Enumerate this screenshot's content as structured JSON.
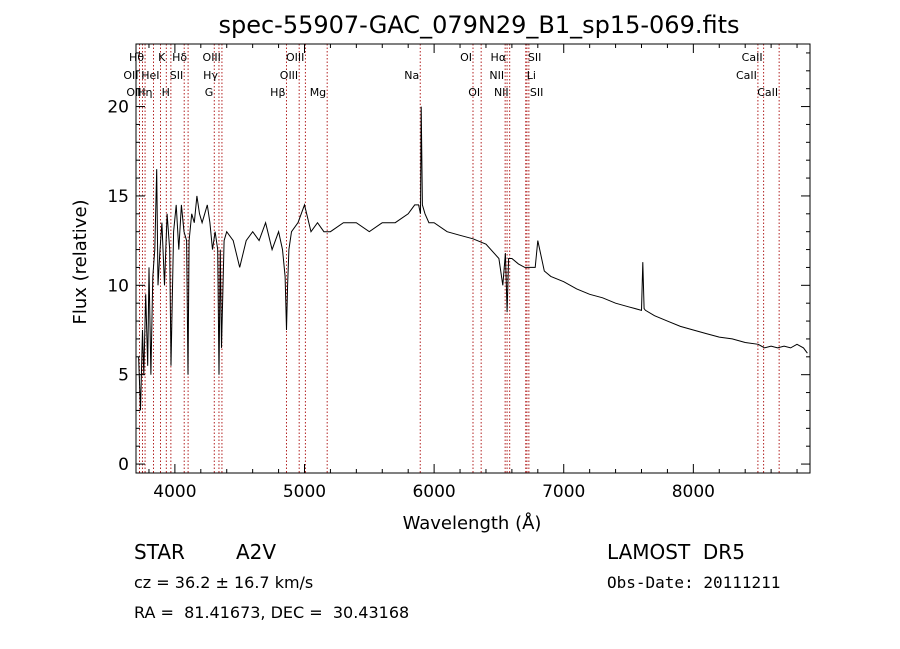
{
  "chart_data": {
    "type": "line",
    "title": "spec-55907-GAC_079N29_B1_sp15-069.fits",
    "xlabel": "Wavelength (Å)",
    "ylabel": "Flux (relative)",
    "xlim": [
      3700,
      8900
    ],
    "ylim": [
      -0.5,
      23.5
    ],
    "xticks": [
      4000,
      5000,
      6000,
      7000,
      8000
    ],
    "yticks": [
      0,
      5,
      10,
      15,
      20
    ],
    "grid": false,
    "line_color": "#000000",
    "marker_color": "#b22222",
    "series": [
      {
        "x": [
          3720,
          3735,
          3750,
          3760,
          3775,
          3790,
          3800,
          3815,
          3830,
          3845,
          3860,
          3870,
          3885,
          3900,
          3920,
          3940,
          3960,
          3970,
          3990,
          4010,
          4030,
          4050,
          4070,
          4090,
          4101,
          4110,
          4130,
          4150,
          4170,
          4190,
          4210,
          4230,
          4250,
          4270,
          4290,
          4310,
          4330,
          4340,
          4350,
          4360,
          4380,
          4400,
          4450,
          4500,
          4550,
          4600,
          4650,
          4700,
          4750,
          4800,
          4830,
          4850,
          4861,
          4870,
          4880,
          4900,
          4950,
          5000,
          5050,
          5100,
          5150,
          5200,
          5300,
          5400,
          5500,
          5600,
          5700,
          5800,
          5850,
          5880,
          5895,
          5900,
          5910,
          5930,
          5960,
          6000,
          6100,
          6200,
          6300,
          6400,
          6500,
          6530,
          6550,
          6563,
          6575,
          6600,
          6650,
          6700,
          6750,
          6780,
          6800,
          6850,
          6900,
          7000,
          7100,
          7200,
          7300,
          7400,
          7500,
          7600,
          7610,
          7620,
          7630,
          7700,
          7800,
          7900,
          8000,
          8100,
          8200,
          8300,
          8400,
          8500,
          8550,
          8600,
          8650,
          8700,
          8750,
          8800,
          8850,
          8880
        ],
        "y": [
          6.0,
          3.0,
          7.5,
          5.0,
          9.5,
          5.5,
          11.0,
          5.0,
          10.5,
          12.0,
          16.5,
          10.0,
          12.0,
          13.5,
          10.0,
          14.0,
          12.0,
          5.5,
          13.0,
          14.5,
          12.0,
          14.5,
          13.0,
          12.5,
          5.0,
          12.5,
          14.0,
          13.5,
          15.0,
          14.0,
          13.5,
          14.0,
          14.5,
          13.5,
          12.0,
          13.0,
          12.0,
          5.0,
          12.0,
          6.5,
          12.5,
          13.0,
          12.5,
          11.0,
          12.5,
          13.0,
          12.5,
          13.5,
          12.0,
          13.0,
          12.0,
          10.5,
          7.5,
          10.0,
          12.0,
          13.0,
          13.5,
          14.5,
          13.0,
          13.5,
          13.0,
          13.0,
          13.5,
          13.5,
          13.0,
          13.5,
          13.5,
          14.0,
          14.5,
          14.5,
          14.0,
          20.0,
          14.5,
          14.0,
          13.5,
          13.5,
          13.0,
          12.8,
          12.6,
          12.3,
          11.5,
          10.0,
          11.8,
          8.5,
          11.5,
          11.5,
          11.2,
          11.0,
          11.0,
          11.0,
          12.5,
          10.8,
          10.5,
          10.2,
          9.8,
          9.5,
          9.3,
          9.0,
          8.8,
          8.6,
          11.3,
          8.7,
          8.6,
          8.3,
          8.0,
          7.7,
          7.5,
          7.3,
          7.1,
          7.0,
          6.8,
          6.7,
          6.5,
          6.6,
          6.5,
          6.6,
          6.5,
          6.7,
          6.5,
          6.2
        ]
      }
    ],
    "line_markers": [
      {
        "x": 3727,
        "label": "OII",
        "row": 1,
        "side": "left"
      },
      {
        "x": 3750,
        "label": "OII",
        "row": 2,
        "side": "left"
      },
      {
        "x": 3770,
        "label": "Hθ",
        "row": 0,
        "side": "left"
      },
      {
        "x": 3835,
        "label": "Hη",
        "row": 2,
        "side": "left"
      },
      {
        "x": 3889,
        "label": "HeI",
        "row": 1,
        "side": "left"
      },
      {
        "x": 3934,
        "label": "K",
        "row": 0,
        "side": "left"
      },
      {
        "x": 3969,
        "label": "H",
        "row": 2,
        "side": "left"
      },
      {
        "x": 4072,
        "label": "SII",
        "row": 1,
        "side": "left"
      },
      {
        "x": 4102,
        "label": "Hδ",
        "row": 0,
        "side": "left"
      },
      {
        "x": 4304,
        "label": "G",
        "row": 2,
        "side": "left"
      },
      {
        "x": 4340,
        "label": "Hγ",
        "row": 1,
        "side": "left"
      },
      {
        "x": 4363,
        "label": "OIII",
        "row": 0,
        "side": "left"
      },
      {
        "x": 4861,
        "label": "Hβ",
        "row": 2,
        "side": "left"
      },
      {
        "x": 4959,
        "label": "OIII",
        "row": 1,
        "side": "left"
      },
      {
        "x": 5007,
        "label": "OIII",
        "row": 0,
        "side": "left"
      },
      {
        "x": 5175,
        "label": "Mg",
        "row": 2,
        "side": "left"
      },
      {
        "x": 5893,
        "label": "Na",
        "row": 1,
        "side": "left"
      },
      {
        "x": 6300,
        "label": "OI",
        "row": 0,
        "side": "left"
      },
      {
        "x": 6363,
        "label": "OI",
        "row": 2,
        "side": "left"
      },
      {
        "x": 6548,
        "label": "NII",
        "row": 1,
        "side": "left"
      },
      {
        "x": 6563,
        "label": "Hα",
        "row": 0,
        "side": "left"
      },
      {
        "x": 6583,
        "label": "NII",
        "row": 2,
        "side": "left"
      },
      {
        "x": 6707,
        "label": "Li",
        "row": 1,
        "side": "right"
      },
      {
        "x": 6716,
        "label": "SII",
        "row": 0,
        "side": "right"
      },
      {
        "x": 6731,
        "label": "SII",
        "row": 2,
        "side": "right"
      },
      {
        "x": 8498,
        "label": "CaII",
        "row": 1,
        "side": "left"
      },
      {
        "x": 8542,
        "label": "CaII",
        "row": 0,
        "side": "left"
      },
      {
        "x": 8662,
        "label": "CaII",
        "row": 2,
        "side": "left"
      }
    ]
  },
  "info": {
    "object_class": "STAR",
    "subclass": "A2V",
    "survey": "LAMOST  DR5",
    "redshift": "cz = 36.2 ± 16.7 km/s",
    "obs_date": "Obs-Date: 20111211",
    "coords": "RA =  81.41673, DEC =  30.43168"
  }
}
